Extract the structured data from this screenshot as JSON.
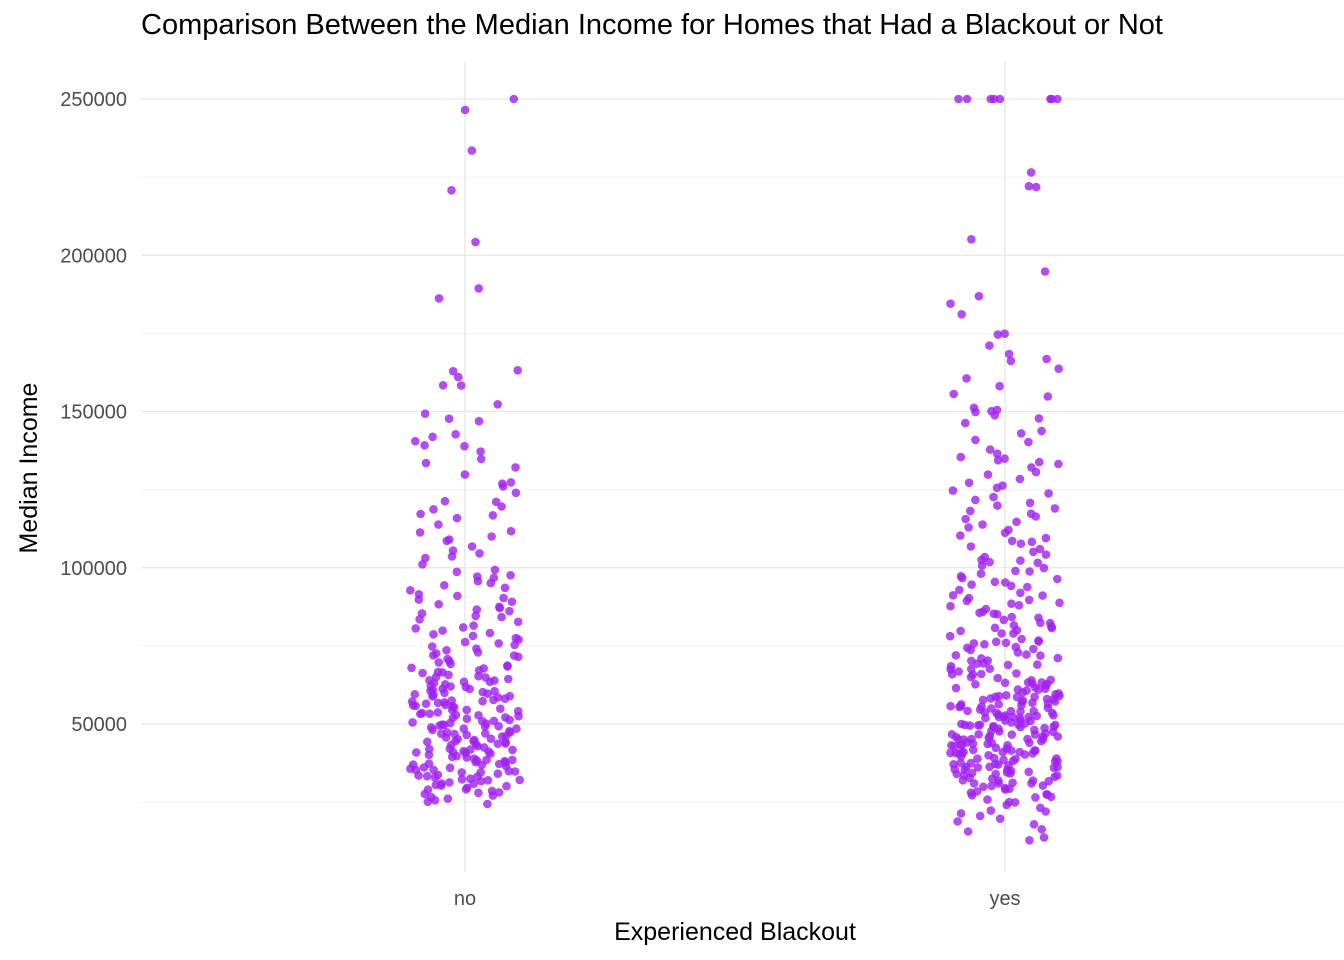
{
  "chart_data": {
    "type": "scatter",
    "title": "Comparison Between the Median Income for Homes that Had a Blackout or Not",
    "xlabel": "Experienced Blackout",
    "ylabel": "Median Income",
    "categories": [
      "no",
      "yes"
    ],
    "y_ticks": [
      {
        "value": 50000,
        "label": "50000"
      },
      {
        "value": 100000,
        "label": "100000"
      },
      {
        "value": 150000,
        "label": "150000"
      },
      {
        "value": 200000,
        "label": "200000"
      },
      {
        "value": 250000,
        "label": "250000"
      }
    ],
    "ylim": [
      11000,
      262000
    ],
    "grid": true,
    "legend": "none",
    "point_color": "#A020F0",
    "series": [
      {
        "category": "no",
        "values": [
          250000,
          246500,
          233500,
          220800,
          204200,
          189400,
          186200,
          163200,
          162900,
          161000,
          158400,
          158300,
          152300,
          149300,
          147700,
          146900,
          142700,
          141900,
          140500,
          139200,
          138900,
          137200,
          134800,
          133500,
          132100,
          129800,
          127300,
          126900,
          126000,
          124000,
          121300,
          121100,
          119600,
          118700,
          117200,
          116800,
          115900,
          113800,
          111700,
          111300,
          110000,
          109000,
          108600,
          106800,
          105500,
          104600,
          103600,
          103100,
          101100,
          99300,
          98700,
          97600,
          97200,
          96800,
          95700,
          95100,
          94400,
          93600,
          92800,
          91500,
          91000,
          90300,
          89800,
          89100,
          88300,
          87500,
          87100,
          86600,
          86100,
          85400,
          84600,
          84200,
          83500,
          82700,
          81500,
          80900,
          80600,
          79900,
          79100,
          78700,
          78200,
          77500,
          77000,
          76200,
          75800,
          75300,
          74800,
          74100,
          73600,
          72900,
          72600,
          71900,
          71500,
          70800,
          70100,
          69700,
          69200,
          68700,
          68400,
          67800,
          67200,
          66600,
          66300,
          65700,
          65300,
          64900,
          64400,
          63900,
          63500,
          63100,
          62700,
          62200,
          61800,
          61300,
          60900,
          60600,
          60200,
          59700,
          59300,
          58900,
          58500,
          58100,
          57700,
          57300,
          56900,
          56500,
          56100,
          55700,
          55300,
          54900,
          54500,
          54100,
          53700,
          53300,
          52900,
          52500,
          52100,
          51700,
          51300,
          50900,
          50500,
          50100,
          49700,
          49300,
          48900,
          48500,
          48100,
          47700,
          47300,
          46900,
          46500,
          46100,
          45700,
          45300,
          44900,
          44500,
          44100,
          43700,
          43300,
          42900,
          42500,
          42100,
          41700,
          41300,
          40900,
          40500,
          40100,
          39700,
          39300,
          38900,
          38500,
          38100,
          37700,
          37300,
          36900,
          36500,
          36100,
          35700,
          35300,
          34900,
          34500,
          34100,
          33700,
          33300,
          32900,
          32500,
          32100,
          31700,
          31300,
          30900,
          30500,
          30100,
          29600,
          29100,
          28600,
          28100,
          27600,
          27100,
          26600,
          26100,
          25600,
          25100,
          24400,
          65000,
          62000,
          59500,
          56000,
          53500,
          51000,
          48500,
          46000,
          43500,
          41000,
          38500,
          36000,
          33500,
          31000,
          28000,
          72000,
          68000,
          64000,
          60500,
          57500,
          54500,
          52000,
          49500,
          47000,
          44500,
          42000,
          39500,
          37000,
          34500,
          32000,
          29000,
          58800,
          55800,
          52800,
          49800,
          46800,
          43800,
          40800,
          37800,
          34800,
          61200,
          57200,
          53200,
          49200,
          45200,
          41200,
          37200,
          33200,
          66500,
          63500,
          60000,
          56800,
          50300,
          47300,
          44300,
          41800,
          38300,
          35300,
          32300,
          30300
        ]
      },
      {
        "category": "yes",
        "values": [
          250000,
          250000,
          250000,
          250000,
          250000,
          250000,
          250000,
          250000,
          226500,
          222100,
          221800,
          205100,
          194800,
          186900,
          184500,
          181100,
          174900,
          174600,
          171100,
          168400,
          166800,
          166200,
          163700,
          160600,
          158100,
          155600,
          154800,
          151200,
          150500,
          150100,
          149800,
          148800,
          147800,
          146300,
          143800,
          143000,
          140900,
          140200,
          137800,
          136500,
          135400,
          134900,
          134400,
          133800,
          133200,
          132100,
          130600,
          129800,
          128400,
          127200,
          126300,
          125600,
          124700,
          123800,
          122600,
          121700,
          120800,
          119900,
          119000,
          118200,
          117300,
          116400,
          115600,
          114700,
          113800,
          112900,
          112100,
          111200,
          110300,
          109500,
          108600,
          107700,
          106800,
          106000,
          105100,
          104200,
          103400,
          102500,
          101600,
          100700,
          99900,
          99000,
          98100,
          97300,
          96400,
          95500,
          94600,
          93800,
          92900,
          92000,
          91200,
          90300,
          89400,
          88500,
          87700,
          86800,
          85900,
          85100,
          84200,
          83300,
          82400,
          81600,
          80700,
          79800,
          79000,
          78100,
          77200,
          76300,
          75500,
          74600,
          73700,
          72900,
          72000,
          71100,
          70200,
          69400,
          68500,
          67600,
          66800,
          65900,
          65000,
          64100,
          63300,
          62400,
          61500,
          60700,
          59800,
          58900,
          58000,
          57200,
          56300,
          55400,
          54600,
          53700,
          52800,
          51900,
          51100,
          50200,
          49300,
          48500,
          47600,
          46700,
          45800,
          45000,
          44100,
          43200,
          42400,
          41500,
          40600,
          39700,
          38900,
          38000,
          37100,
          36300,
          35400,
          34500,
          33600,
          32800,
          31900,
          31000,
          30200,
          29300,
          28400,
          27500,
          26700,
          25800,
          24900,
          24100,
          23200,
          22300,
          21400,
          20600,
          19700,
          18800,
          17900,
          16300,
          15600,
          13700,
          12800,
          98800,
          94200,
          89700,
          85300,
          80800,
          76400,
          71900,
          67500,
          63000,
          58600,
          54100,
          49700,
          45200,
          40800,
          36300,
          31900,
          27400,
          102300,
          96700,
          91100,
          85600,
          80000,
          74400,
          68900,
          63300,
          57700,
          52200,
          46600,
          41000,
          35500,
          29900,
          108300,
          101800,
          95300,
          88800,
          82300,
          75800,
          69300,
          62800,
          56300,
          49800,
          43300,
          36800,
          30300,
          81200,
          76700,
          72200,
          67700,
          63200,
          58700,
          54200,
          49700,
          45200,
          40700,
          36200,
          31700,
          27200,
          66200,
          62700,
          59200,
          55700,
          52200,
          48700,
          45200,
          41700,
          38200,
          34700,
          31200,
          60100,
          57100,
          54100,
          51100,
          48100,
          45100,
          42100,
          39100,
          36100,
          33100,
          70300,
          65800,
          61300,
          56800,
          52300,
          47800,
          43300,
          38800,
          34300,
          55600,
          52600,
          49600,
          46600,
          43600,
          40600,
          37600,
          58200,
          55200,
          52200,
          49200,
          46200,
          43200,
          40200,
          37200,
          34200,
          64700,
          61700,
          58700,
          55700,
          52700,
          49700,
          46700,
          43700,
          40700,
          57500,
          53500,
          49500,
          45500,
          41500,
          37500,
          33500,
          59500,
          56500,
          53500,
          50500,
          47500,
          44500,
          41500,
          38500,
          35500,
          32500,
          29500,
          26500,
          61000,
          58000,
          55000,
          52000,
          49000,
          46000,
          43000,
          40000,
          37000,
          34000,
          31000,
          28000,
          25000,
          22000,
          53000,
          50000,
          47000,
          44000,
          41000,
          38000,
          35000,
          32000,
          29000,
          76000,
          71000,
          66000,
          61000,
          56000,
          51000,
          46000,
          41000,
          36000,
          31000,
          88000,
          84000,
          79000,
          74000,
          69000,
          64000,
          59000,
          54000,
          49000,
          44000,
          39000,
          34000
        ]
      }
    ]
  }
}
